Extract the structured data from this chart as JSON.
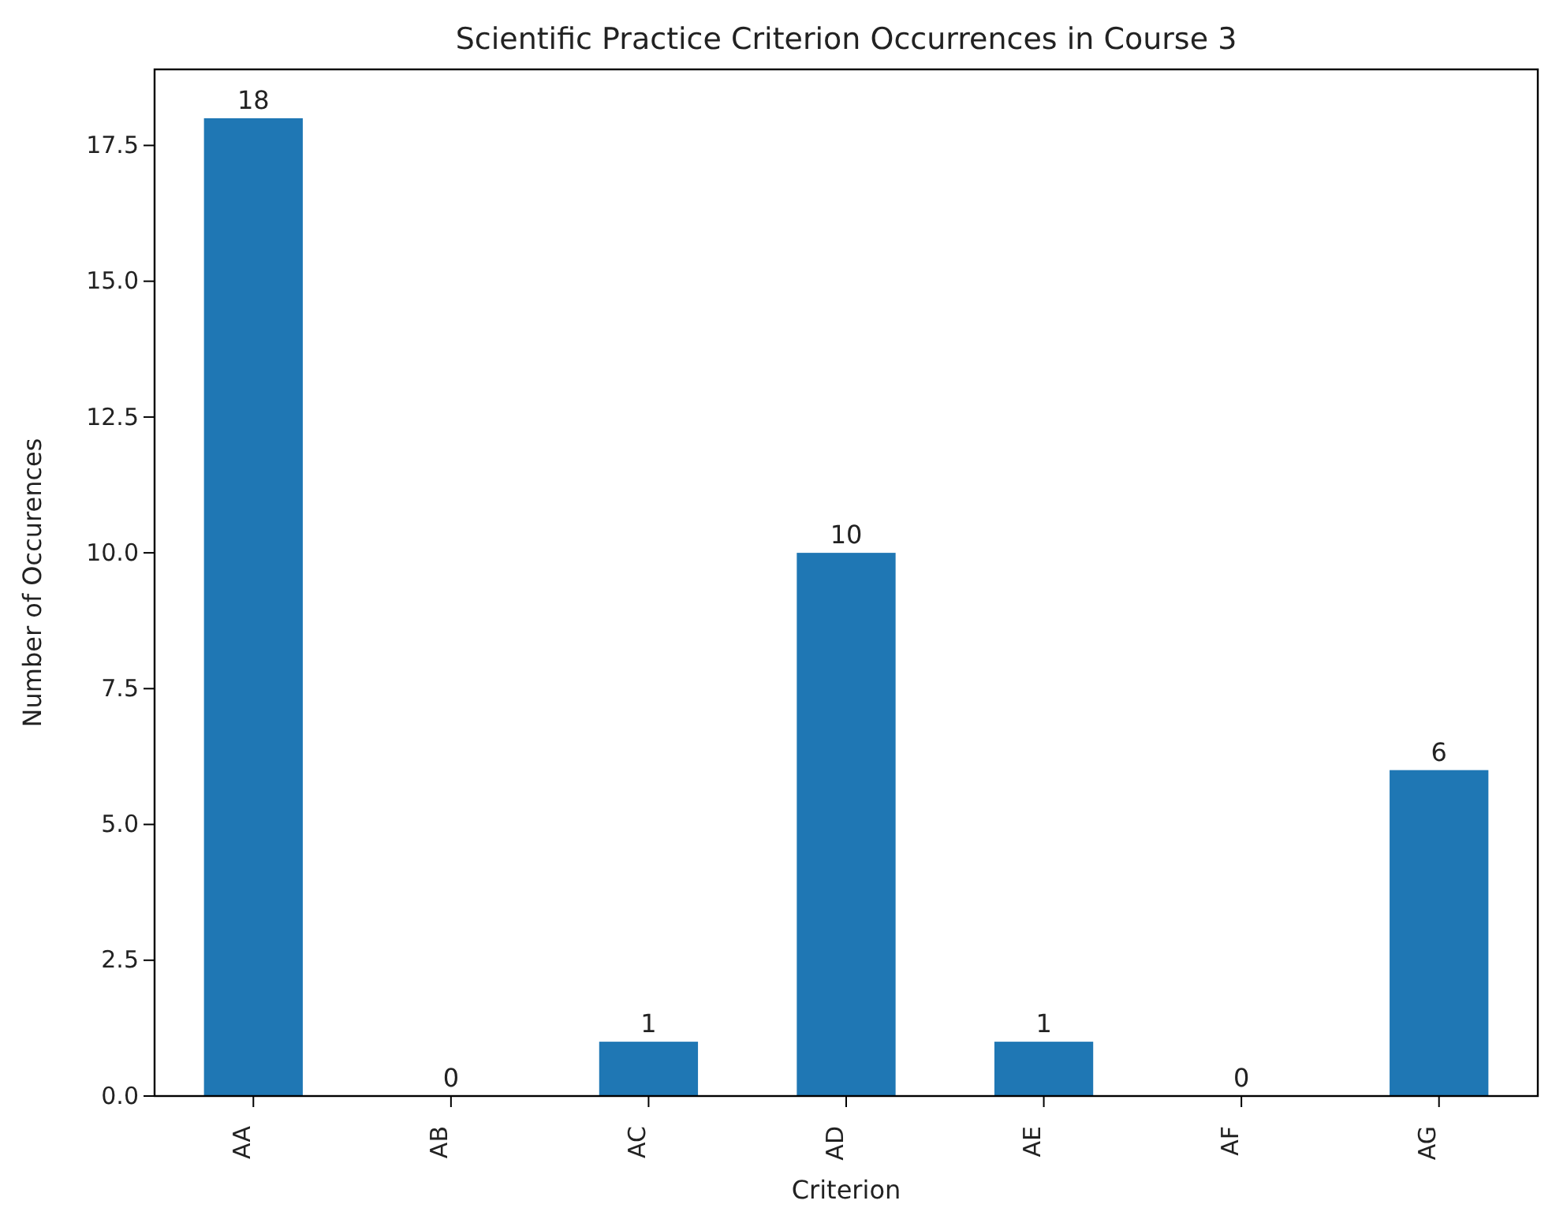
{
  "chart_data": {
    "type": "bar",
    "title": "Scientific Practice Criterion Occurrences in Course 3",
    "xlabel": "Criterion",
    "ylabel": "Number of Occurences",
    "categories": [
      "AA",
      "AB",
      "AC",
      "AD",
      "AE",
      "AF",
      "AG"
    ],
    "values": [
      18,
      0,
      1,
      10,
      1,
      0,
      6
    ],
    "color": "#1f77b4",
    "ylim": [
      0,
      18.9
    ],
    "yticks": [
      {
        "value": 0,
        "label": "0.0"
      },
      {
        "value": 2.5,
        "label": "2.5"
      },
      {
        "value": 5,
        "label": "5.0"
      },
      {
        "value": 7.5,
        "label": "7.5"
      },
      {
        "value": 10,
        "label": "10.0"
      },
      {
        "value": 12.5,
        "label": "12.5"
      },
      {
        "value": 15,
        "label": "15.0"
      },
      {
        "value": 17.5,
        "label": "17.5"
      }
    ],
    "data_labels": true
  }
}
